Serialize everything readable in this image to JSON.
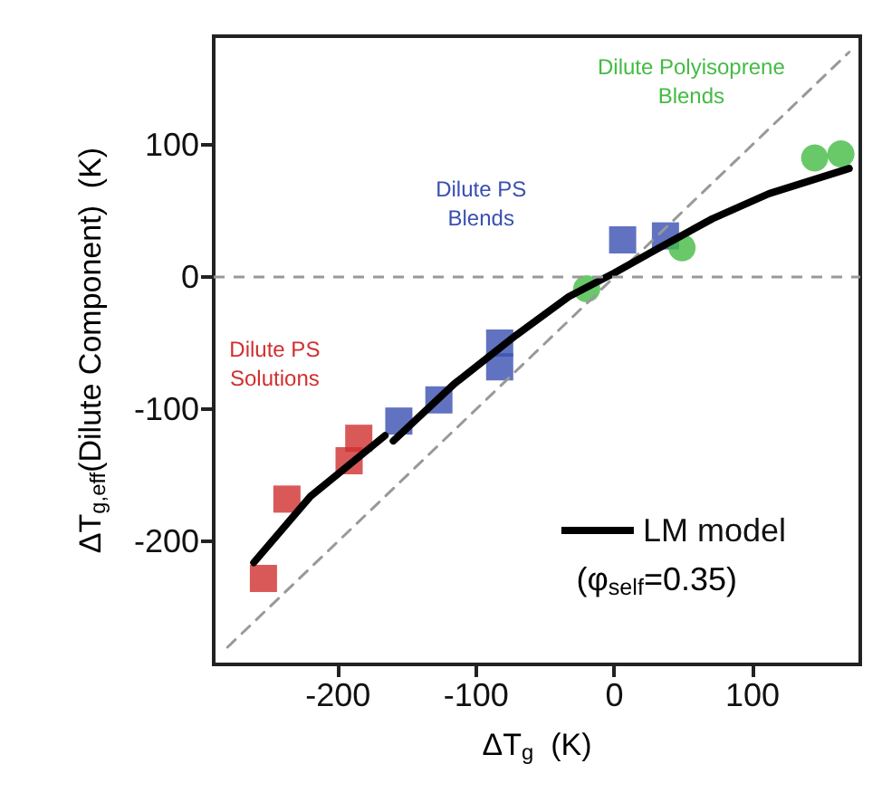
{
  "chart_data": {
    "type": "scatter",
    "xlabel": "ΔT$_{g}$  (K)",
    "ylabel": "ΔT$_{g,eff}$(Dilute Component)  (K)",
    "xlim": [
      -290,
      178
    ],
    "ylim": [
      -293,
      182
    ],
    "xticks": [
      -200,
      -100,
      0,
      100
    ],
    "yticks": [
      -200,
      -100,
      0,
      100
    ],
    "grid": false,
    "legend": "bottom right",
    "series": [
      {
        "name": "Dilute PS\nSolutions",
        "marker": "square",
        "color": "#d03030",
        "x": [
          -254,
          -237,
          -192,
          -185
        ],
        "values": [
          -228,
          -168,
          -139,
          -122
        ]
      },
      {
        "name": "Dilute PS\nBlends",
        "marker": "square",
        "color": "#3a50b0",
        "x": [
          -156,
          -127,
          -83,
          -83,
          6,
          37
        ],
        "values": [
          -109,
          -93,
          -50,
          -68,
          28,
          31
        ]
      },
      {
        "name": "Dilute Polyisoprene\nBlends",
        "marker": "circle",
        "color": "#44bb44",
        "x": [
          -20,
          49,
          145,
          164
        ],
        "values": [
          -9,
          22,
          90,
          93
        ]
      },
      {
        "type": "line",
        "line_style": "dashed",
        "color": "#999999",
        "x": [
          -280,
          170
        ],
        "values": [
          -280,
          170
        ]
      },
      {
        "type": "line",
        "name": "LM model",
        "marker": "none",
        "line_style": "solid",
        "color": "#000000",
        "x": [
          -261,
          -220,
          -166,
          -163,
          -160,
          -116,
          -71,
          -33,
          0,
          29,
          71,
          112,
          170
        ],
        "values": [
          -216,
          -166,
          -120,
          null,
          -124,
          -81,
          -44,
          -15,
          3,
          20,
          44,
          63,
          82
        ]
      }
    ],
    "ref_lines": [
      {
        "axis": "y",
        "value": 0,
        "color": "#999999",
        "line_style": "dashed"
      }
    ],
    "annotations": [
      "(φ$_{self}$=0.35)"
    ]
  }
}
